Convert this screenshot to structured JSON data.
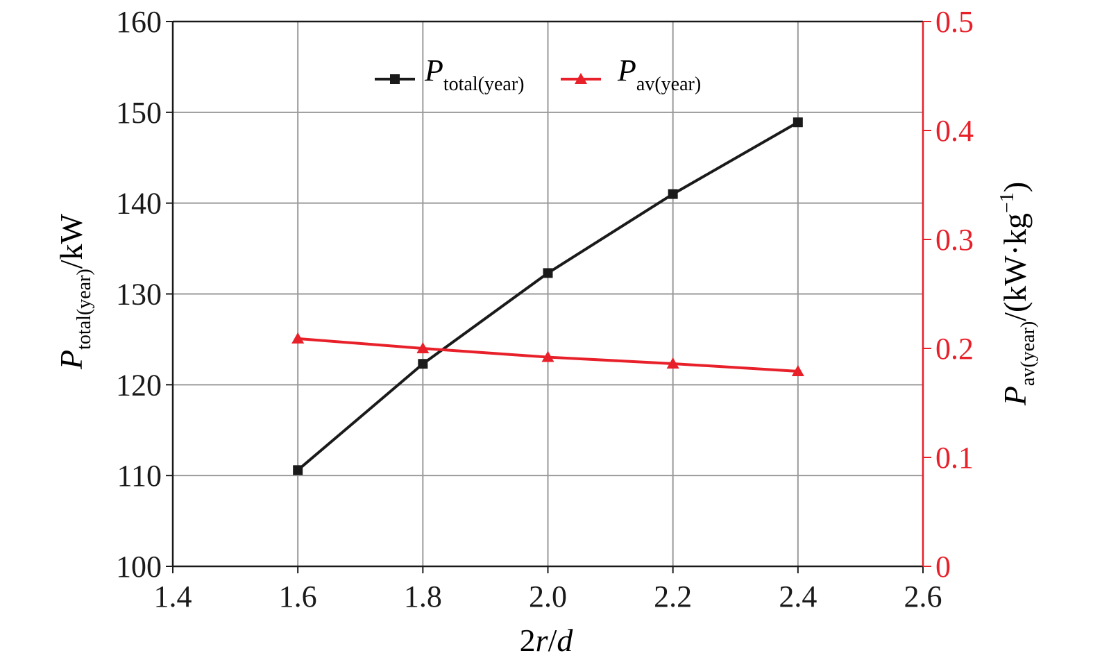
{
  "chart_data": {
    "type": "line",
    "x": [
      1.6,
      1.8,
      2.0,
      2.2,
      2.4
    ],
    "xlim": [
      1.4,
      2.6
    ],
    "xticks": [
      "1.4",
      "1.6",
      "1.8",
      "2.0",
      "2.2",
      "2.4",
      "2.6"
    ],
    "xlabel": {
      "prefix": "2",
      "var": "r",
      "mid": "/",
      "var2": "d"
    },
    "ylim_left": [
      100,
      160
    ],
    "yticks_left": [
      "100",
      "110",
      "120",
      "130",
      "140",
      "150",
      "160"
    ],
    "ylabel_left": {
      "symbol": "P",
      "subscript": "total(year)",
      "unit": "/kW"
    },
    "ylim_right": [
      0,
      0.5
    ],
    "yticks_right": [
      "0",
      "0.1",
      "0.2",
      "0.3",
      "0.4",
      "0.5"
    ],
    "ylabel_right": {
      "symbol": "P",
      "subscript": "av(year)",
      "unit_open": "/(kW·kg",
      "unit_sup": "−1",
      "unit_close": ")"
    },
    "grid": true,
    "legend_position": "top-center",
    "series": [
      {
        "name_symbol": "P",
        "name_sub": "total(year)",
        "axis": "left",
        "marker": "square",
        "color": "#1a1a1a",
        "values": [
          110.6,
          122.3,
          132.3,
          141.0,
          148.9
        ]
      },
      {
        "name_symbol": "P",
        "name_sub": "av(year)",
        "axis": "right",
        "marker": "triangle",
        "color": "#e8202a",
        "values": [
          0.209,
          0.2,
          0.192,
          0.186,
          0.179
        ]
      }
    ],
    "right_axis_color": "#e8202a"
  }
}
